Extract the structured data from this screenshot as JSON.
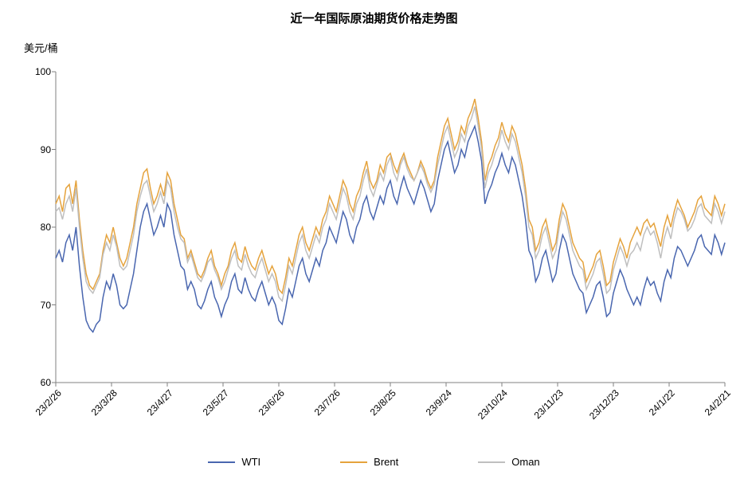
{
  "chart": {
    "type": "line",
    "title": "近一年国际原油期货价格走势图",
    "title_fontsize": 15,
    "y_unit_label": "美元/桶",
    "y_unit_fontsize": 13,
    "background_color": "#ffffff",
    "axis_color": "#808080",
    "text_color": "#000000",
    "tick_fontsize": 12,
    "grid": false,
    "ylim": [
      60,
      100
    ],
    "ytick_step": 10,
    "yticks": [
      60,
      70,
      80,
      90,
      100
    ],
    "xticks": [
      "23/2/26",
      "23/3/28",
      "23/4/27",
      "23/5/27",
      "23/6/26",
      "23/7/26",
      "23/8/25",
      "23/9/24",
      "23/10/24",
      "23/11/23",
      "23/12/23",
      "24/1/22",
      "24/2/21"
    ],
    "xtick_rotation_deg": -45,
    "line_width": 1.5,
    "series": [
      {
        "name": "WTI",
        "color": "#4966af",
        "values": [
          76,
          77,
          75.5,
          78,
          79,
          77,
          80,
          75,
          71,
          68,
          67,
          66.5,
          67.5,
          68,
          71,
          73,
          72,
          74,
          72.5,
          70,
          69.5,
          70,
          72,
          74,
          77,
          80,
          82,
          83,
          81,
          79,
          80,
          81.5,
          80,
          83,
          82,
          79,
          77,
          75,
          74.5,
          72,
          73,
          72,
          70,
          69.5,
          70.5,
          72,
          73,
          71,
          70,
          68.5,
          70,
          71,
          73,
          74,
          72,
          71.5,
          73.5,
          72,
          71,
          70.5,
          72,
          73,
          71.5,
          70,
          71,
          70,
          68,
          67.5,
          69.5,
          72,
          71,
          73,
          75,
          76,
          74,
          73,
          74.5,
          76,
          75,
          77,
          78,
          80,
          79,
          78,
          80,
          82,
          81,
          79,
          78,
          80,
          81,
          83,
          84,
          82,
          81,
          82.5,
          84,
          83,
          85,
          86,
          84,
          83,
          85,
          86.5,
          85,
          84,
          83,
          84.5,
          86,
          85,
          83.5,
          82,
          83,
          86,
          88,
          90,
          91,
          89,
          87,
          88,
          90,
          89,
          91,
          92,
          93,
          91,
          88.5,
          83,
          84.5,
          85.5,
          87,
          88,
          89.5,
          88,
          87,
          89,
          88,
          86,
          84,
          81,
          77,
          76,
          73,
          74,
          76,
          77,
          75,
          73,
          74,
          77,
          79,
          78,
          76,
          74,
          73,
          72,
          71.5,
          69,
          70,
          71,
          72.5,
          73,
          71,
          68.5,
          69,
          71.5,
          73,
          74.5,
          73.5,
          72,
          71,
          70,
          71,
          70,
          72,
          73.5,
          72.5,
          73,
          71.5,
          70.5,
          73,
          74.5,
          73.5,
          76,
          77.5,
          77,
          76,
          75,
          76,
          77,
          78.5,
          79,
          77.5,
          77,
          76.5,
          79,
          78,
          76.5,
          78
        ]
      },
      {
        "name": "Brent",
        "color": "#e5a33d",
        "values": [
          83,
          84,
          82,
          85,
          85.5,
          83,
          86,
          81,
          77,
          74,
          72.5,
          72,
          73,
          74,
          77,
          79,
          78,
          80,
          78,
          76,
          75,
          76,
          78,
          80,
          83,
          85,
          87,
          87.5,
          85,
          83,
          84,
          85.5,
          84,
          87,
          86,
          83,
          81,
          79,
          78.5,
          76,
          77,
          75.5,
          74,
          73.5,
          74.5,
          76,
          77,
          75,
          74,
          72.5,
          74,
          75,
          77,
          78,
          76,
          75.5,
          77.5,
          76,
          75,
          74.5,
          76,
          77,
          75.5,
          74,
          75,
          74,
          72,
          71.5,
          73.5,
          76,
          75,
          77,
          79,
          80,
          78,
          77,
          78.5,
          80,
          79,
          81,
          82,
          84,
          83,
          82,
          84,
          86,
          85,
          83,
          82,
          84,
          85,
          87,
          88.5,
          86,
          85,
          86,
          88,
          87,
          89,
          89.5,
          88,
          87,
          88.5,
          89.5,
          88,
          87,
          86,
          87,
          88.5,
          87.5,
          86,
          85,
          86,
          89,
          91,
          93,
          94,
          92,
          90,
          91,
          93,
          92,
          94,
          95,
          96.5,
          94,
          91,
          86,
          88,
          89,
          90.5,
          91.5,
          93.5,
          92,
          91,
          93,
          92,
          90,
          88,
          85,
          81,
          80,
          77,
          78,
          80,
          81,
          79,
          77,
          78,
          81,
          83,
          82,
          80,
          78,
          77,
          76,
          75.5,
          73,
          74,
          75,
          76.5,
          77,
          75,
          72.5,
          73,
          75.5,
          77,
          78.5,
          77.5,
          76,
          78,
          79,
          80,
          79,
          80.5,
          81,
          80,
          80.5,
          79,
          77.5,
          80,
          81.5,
          80,
          82,
          83.5,
          82.5,
          81.5,
          80,
          81,
          82,
          83.5,
          84,
          82.5,
          82,
          81.5,
          84,
          83,
          81.5,
          83
        ]
      },
      {
        "name": "Oman",
        "color": "#bfbfbf",
        "values": [
          82,
          82.5,
          81,
          83,
          84,
          82,
          85,
          80,
          76,
          73,
          72,
          71.5,
          72.5,
          73.5,
          76.5,
          78,
          77,
          79,
          77.5,
          75,
          74.5,
          75,
          77,
          79,
          82,
          84,
          85.5,
          86,
          84,
          82,
          83,
          84.5,
          83,
          86,
          85,
          82,
          80,
          78.5,
          78,
          75.5,
          76.5,
          75,
          73.5,
          73,
          74,
          75.5,
          76,
          74.5,
          73.5,
          72,
          73,
          74.5,
          76,
          77,
          75,
          74.5,
          76.5,
          75,
          74,
          73.5,
          75,
          76,
          74.5,
          73,
          74,
          73,
          71,
          70.5,
          72.5,
          75,
          74,
          76,
          78,
          79,
          77,
          76,
          77.5,
          79,
          78,
          80,
          81,
          83,
          82,
          81,
          83,
          85,
          84,
          82,
          81,
          83,
          84,
          86,
          87.5,
          85,
          84,
          85.5,
          87,
          86,
          88,
          89,
          87,
          86,
          88,
          89,
          87.5,
          86.5,
          86,
          87,
          88,
          87,
          85.5,
          84.5,
          85.5,
          88,
          90,
          92,
          93,
          91,
          89,
          90,
          92,
          91,
          93,
          94,
          95.5,
          93,
          90,
          85,
          87,
          88,
          89.5,
          90.5,
          92.5,
          91,
          90,
          92,
          91,
          89,
          87,
          84,
          80,
          79,
          76,
          77,
          79,
          80,
          78,
          76,
          77,
          80,
          82,
          81,
          79,
          77,
          76,
          75,
          74.5,
          72,
          73,
          74,
          75.5,
          76,
          74,
          71.5,
          72,
          74.5,
          76,
          77.5,
          76.5,
          75,
          76.5,
          77,
          78,
          77,
          79,
          80,
          79,
          79.5,
          78,
          76,
          78.5,
          80,
          78.5,
          81,
          82.5,
          82,
          81,
          79.5,
          80,
          81,
          82.5,
          83,
          81.5,
          81,
          80.5,
          83,
          82,
          80.5,
          82
        ]
      }
    ],
    "legend": {
      "position": "bottom-center",
      "items": [
        "WTI",
        "Brent",
        "Oman"
      ],
      "fontsize": 13
    }
  }
}
